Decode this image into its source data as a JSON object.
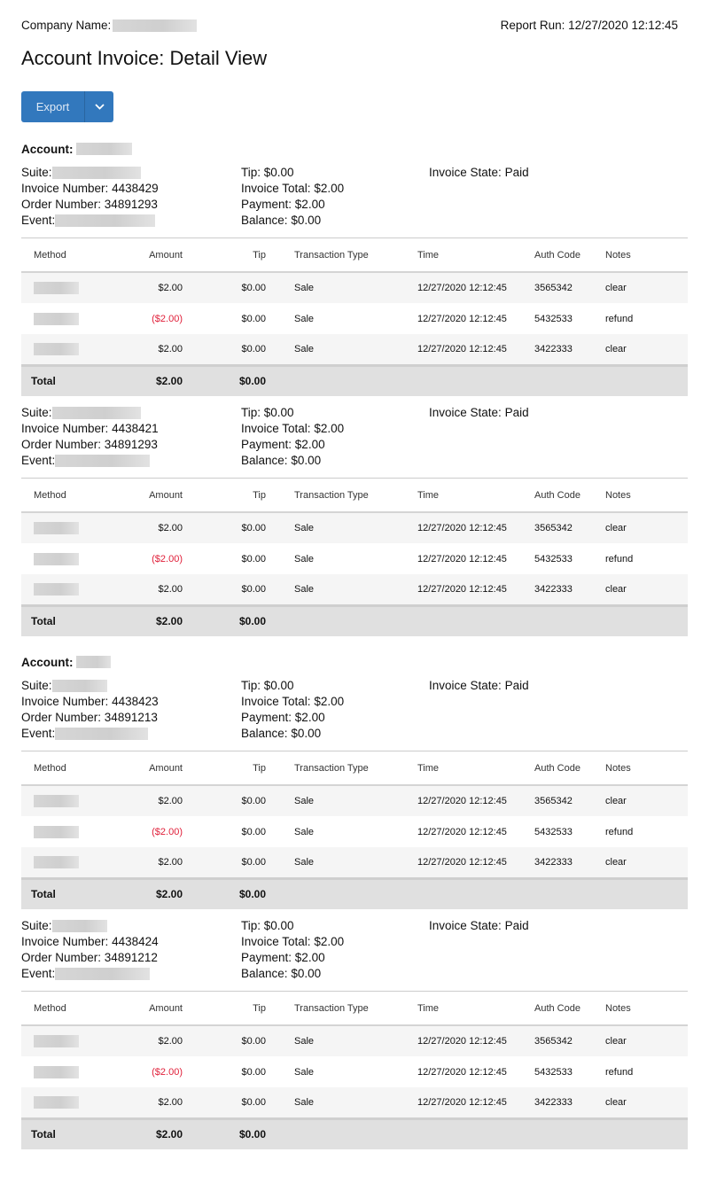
{
  "header": {
    "company_label": "Company Name:",
    "report_run": "Report Run: 12/27/2020 12:12:45",
    "title": "Account Invoice: Detail View",
    "export_label": "Export"
  },
  "labels": {
    "account": "Account:",
    "suite": "Suite:",
    "invoice_number": "Invoice Number:",
    "order_number": "Order Number:",
    "event": "Event:",
    "tip": "Tip:",
    "invoice_total": "Invoice Total:",
    "payment": "Payment:",
    "balance": "Balance:",
    "invoice_state": "Invoice State:",
    "total": "Total"
  },
  "columns": [
    "Method",
    "Amount",
    "Tip",
    "Transaction Type",
    "Time",
    "Auth Code",
    "Notes"
  ],
  "colors": {
    "accent": "#3278bd",
    "negative": "#e0203a"
  },
  "accounts": [
    {
      "show_account": true,
      "invoices": [
        {
          "invoice_number": "4438429",
          "order_number": "34891293",
          "tip": "$0.00",
          "invoice_total": "$2.00",
          "payment": "$2.00",
          "balance": "$0.00",
          "state": "Paid",
          "total_amount": "$2.00",
          "total_tip": "$0.00",
          "rows": [
            {
              "amount": "$2.00",
              "tip": "$0.00",
              "type": "Sale",
              "time": "12/27/2020 12:12:45",
              "auth": "3565342",
              "notes": "clear"
            },
            {
              "amount": "($2.00)",
              "negative": true,
              "tip": "$0.00",
              "type": "Sale",
              "time": "12/27/2020 12:12:45",
              "auth": "5432533",
              "notes": "refund"
            },
            {
              "amount": "$2.00",
              "tip": "$0.00",
              "type": "Sale",
              "time": "12/27/2020 12:12:45",
              "auth": "3422333",
              "notes": "clear"
            }
          ]
        },
        {
          "invoice_number": "4438421",
          "order_number": "34891293",
          "tip": "$0.00",
          "invoice_total": "$2.00",
          "payment": "$2.00",
          "balance": "$0.00",
          "state": "Paid",
          "total_amount": "$2.00",
          "total_tip": "$0.00",
          "rows": [
            {
              "amount": "$2.00",
              "tip": "$0.00",
              "type": "Sale",
              "time": "12/27/2020 12:12:45",
              "auth": "3565342",
              "notes": "clear"
            },
            {
              "amount": "($2.00)",
              "negative": true,
              "tip": "$0.00",
              "type": "Sale",
              "time": "12/27/2020 12:12:45",
              "auth": "5432533",
              "notes": "refund"
            },
            {
              "amount": "$2.00",
              "tip": "$0.00",
              "type": "Sale",
              "time": "12/27/2020 12:12:45",
              "auth": "3422333",
              "notes": "clear"
            }
          ]
        }
      ]
    },
    {
      "show_account": true,
      "invoices": [
        {
          "invoice_number": "4438423",
          "order_number": "34891213",
          "tip": "$0.00",
          "invoice_total": "$2.00",
          "payment": "$2.00",
          "balance": "$0.00",
          "state": "Paid",
          "total_amount": "$2.00",
          "total_tip": "$0.00",
          "rows": [
            {
              "amount": "$2.00",
              "tip": "$0.00",
              "type": "Sale",
              "time": "12/27/2020 12:12:45",
              "auth": "3565342",
              "notes": "clear"
            },
            {
              "amount": "($2.00)",
              "negative": true,
              "tip": "$0.00",
              "type": "Sale",
              "time": "12/27/2020 12:12:45",
              "auth": "5432533",
              "notes": "refund"
            },
            {
              "amount": "$2.00",
              "tip": "$0.00",
              "type": "Sale",
              "time": "12/27/2020 12:12:45",
              "auth": "3422333",
              "notes": "clear"
            }
          ]
        },
        {
          "invoice_number": "4438424",
          "order_number": "34891212",
          "tip": "$0.00",
          "invoice_total": "$2.00",
          "payment": "$2.00",
          "balance": "$0.00",
          "state": "Paid",
          "total_amount": "$2.00",
          "total_tip": "$0.00",
          "rows": [
            {
              "amount": "$2.00",
              "tip": "$0.00",
              "type": "Sale",
              "time": "12/27/2020 12:12:45",
              "auth": "3565342",
              "notes": "clear"
            },
            {
              "amount": "($2.00)",
              "negative": true,
              "tip": "$0.00",
              "type": "Sale",
              "time": "12/27/2020 12:12:45",
              "auth": "5432533",
              "notes": "refund"
            },
            {
              "amount": "$2.00",
              "tip": "$0.00",
              "type": "Sale",
              "time": "12/27/2020 12:12:45",
              "auth": "3422333",
              "notes": "clear"
            }
          ]
        }
      ]
    }
  ]
}
